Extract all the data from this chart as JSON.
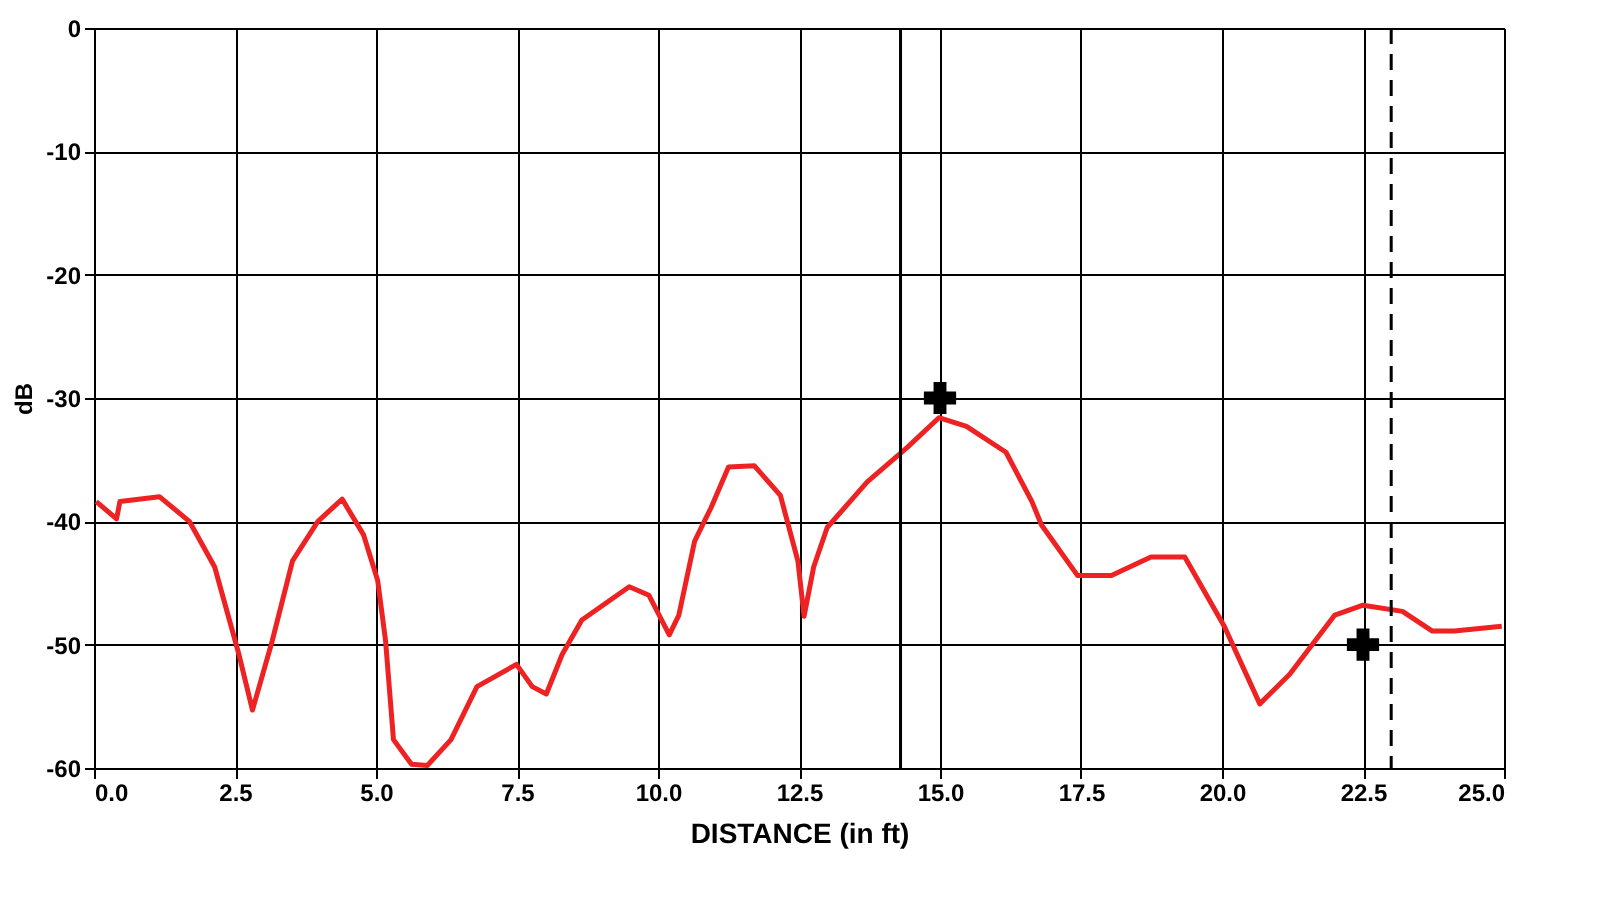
{
  "chart_data": {
    "type": "line",
    "xlabel": "DISTANCE (in ft)",
    "ylabel": "dB",
    "xlim": [
      0,
      25
    ],
    "ylim": [
      -60,
      0
    ],
    "xticks": [
      {
        "value": 0,
        "label": "0.0"
      },
      {
        "value": 2.5,
        "label": "2.5"
      },
      {
        "value": 5,
        "label": "5.0"
      },
      {
        "value": 7.5,
        "label": "7.5"
      },
      {
        "value": 10,
        "label": "10.0"
      },
      {
        "value": 12.5,
        "label": "12.5"
      },
      {
        "value": 15,
        "label": "15.0"
      },
      {
        "value": 17.5,
        "label": "17.5"
      },
      {
        "value": 20,
        "label": "20.0"
      },
      {
        "value": 22.5,
        "label": "22.5"
      },
      {
        "value": 25,
        "label": "25.0"
      }
    ],
    "yticks": [
      0,
      -10,
      -20,
      -30,
      -40,
      -50,
      -60
    ],
    "grid": true,
    "line_style": "solid",
    "series": [
      {
        "color": "#ee2222",
        "marker": "none",
        "x": [
          0.04,
          0.4,
          0.46,
          1.16,
          1.69,
          2.14,
          2.57,
          2.81,
          3.16,
          3.52,
          3.97,
          4.4,
          4.78,
          5.03,
          5.17,
          5.31,
          5.63,
          5.91,
          6.33,
          6.79,
          7.49,
          7.77,
          8.02,
          8.3,
          8.65,
          9.49,
          9.84,
          10.2,
          10.37,
          10.65,
          10.94,
          11.25,
          11.71,
          12.17,
          12.48,
          12.59,
          12.76,
          13.0,
          13.71,
          14.42,
          14.98,
          15.47,
          16.17,
          16.63,
          16.8,
          17.44,
          18.04,
          18.74,
          19.34,
          20.04,
          20.67,
          21.2,
          22.0,
          22.5,
          23.2,
          23.73,
          24.12,
          24.96
        ],
        "values": [
          -38.4,
          -39.8,
          -38.4,
          -38,
          -40,
          -43.7,
          -50.8,
          -55.3,
          -49.7,
          -43.2,
          -40,
          -38.2,
          -41.1,
          -44.8,
          -49.7,
          -57.7,
          -59.7,
          -59.8,
          -57.7,
          -53.4,
          -51.6,
          -53.4,
          -54,
          -50.8,
          -48,
          -45.3,
          -46,
          -49.2,
          -47.6,
          -41.6,
          -38.9,
          -35.6,
          -35.5,
          -37.9,
          -43.2,
          -47.7,
          -43.7,
          -40.5,
          -36.8,
          -34,
          -31.6,
          -32.3,
          -34.4,
          -38.4,
          -40.3,
          -44.4,
          -44.4,
          -42.9,
          -42.9,
          -48.5,
          -54.8,
          -52.4,
          -47.6,
          -46.8,
          -47.3,
          -48.9,
          -48.9,
          -48.5
        ]
      },
      {
        "type": "scatter",
        "color": "#000000",
        "marker": "cross",
        "x": [
          15,
          22.5
        ],
        "values": [
          -30,
          -50
        ]
      }
    ],
    "ref_lines": [
      {
        "axis": "x",
        "value": 14.3,
        "color": "#000000",
        "line_style": "solid"
      },
      {
        "axis": "x",
        "value": 23,
        "color": "#000000",
        "line_style": "dashed"
      }
    ]
  }
}
